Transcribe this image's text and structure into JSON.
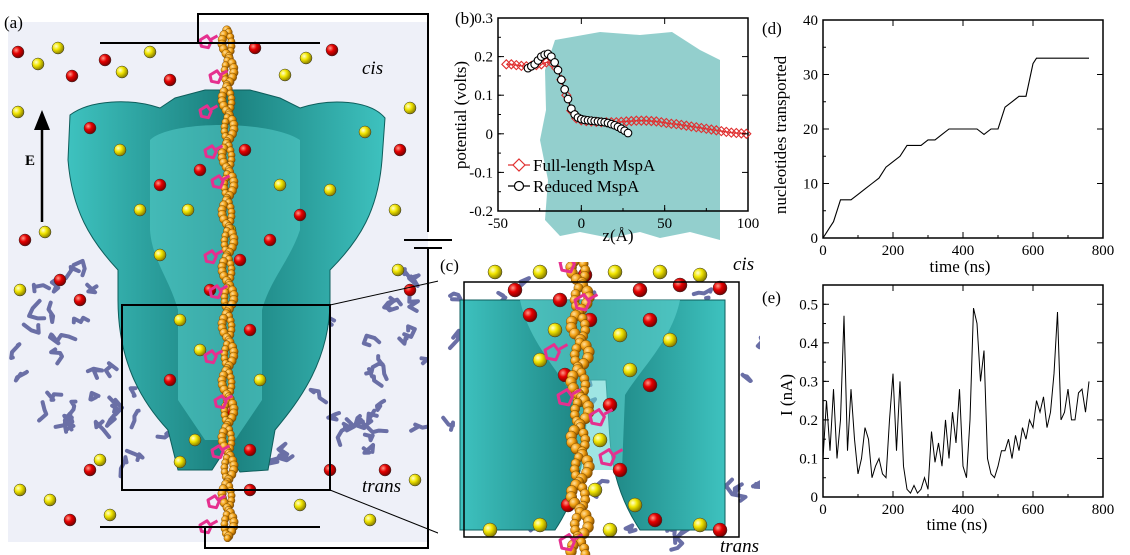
{
  "panels": {
    "a": {
      "label": "(a)",
      "cis": "cis",
      "trans": "trans",
      "field": "E"
    },
    "c": {
      "label": "(c)",
      "cis": "cis",
      "trans": "trans"
    }
  },
  "colors": {
    "water": "#eef0f8",
    "protein": "#1f8c8a",
    "protein_light": "#5fd3d0",
    "lipid": "#6a6fa6",
    "dna": "#f2a012",
    "base": "#e5308f",
    "cation": "#e60000",
    "anion": "#f2e600"
  },
  "chart_data": [
    {
      "panel": "(b)",
      "type": "line",
      "xlabel": "z(Å)",
      "ylabel": "potential (volts)",
      "xlim": [
        -50,
        100
      ],
      "ylim": [
        -0.2,
        0.3
      ],
      "xticks": [
        "-50",
        "0",
        "50",
        "100"
      ],
      "yticks": [
        "-0.2",
        "-0.1",
        "0",
        "0.1",
        "0.2",
        "0.3"
      ],
      "legend_position": "lower-left",
      "series": [
        {
          "name": "Full-length MspA",
          "marker": "diamond",
          "color": "#e03030",
          "x": [
            -45,
            -42,
            -39,
            -36,
            -33,
            -30,
            -27,
            -24,
            -21,
            -18,
            -15,
            -12,
            -9,
            -6,
            -3,
            0,
            3,
            6,
            9,
            12,
            15,
            18,
            21,
            24,
            27,
            30,
            33,
            36,
            39,
            42,
            45,
            48,
            51,
            54,
            57,
            60,
            63,
            66,
            69,
            72,
            75,
            78,
            81,
            84,
            87,
            90,
            93,
            96,
            99
          ],
          "y": [
            0.18,
            0.18,
            0.178,
            0.176,
            0.175,
            0.176,
            0.178,
            0.18,
            0.185,
            0.185,
            0.17,
            0.14,
            0.1,
            0.06,
            0.04,
            0.035,
            0.033,
            0.032,
            0.031,
            0.03,
            0.03,
            0.03,
            0.03,
            0.031,
            0.032,
            0.033,
            0.034,
            0.034,
            0.034,
            0.033,
            0.032,
            0.03,
            0.028,
            0.026,
            0.025,
            0.023,
            0.021,
            0.019,
            0.017,
            0.015,
            0.013,
            0.011,
            0.009,
            0.007,
            0.005,
            0.003,
            0.002,
            0.001,
            0.0
          ]
        },
        {
          "name": "Reduced MspA",
          "marker": "circle",
          "color": "#000000",
          "x": [
            -32,
            -30,
            -28,
            -26,
            -24,
            -22,
            -20,
            -18,
            -16,
            -14,
            -12,
            -10,
            -8,
            -6,
            -4,
            -2,
            0,
            2,
            4,
            6,
            8,
            10,
            12,
            14,
            16,
            18,
            20,
            22,
            24,
            26,
            28
          ],
          "y": [
            0.17,
            0.175,
            0.18,
            0.19,
            0.2,
            0.205,
            0.207,
            0.2,
            0.185,
            0.165,
            0.14,
            0.115,
            0.09,
            0.065,
            0.05,
            0.042,
            0.038,
            0.036,
            0.035,
            0.034,
            0.033,
            0.032,
            0.031,
            0.03,
            0.028,
            0.025,
            0.022,
            0.018,
            0.013,
            0.008,
            0.002
          ]
        }
      ]
    },
    {
      "panel": "(d)",
      "type": "line",
      "xlabel": "time (ns)",
      "ylabel": "nucleotides transported",
      "xlim": [
        0,
        800
      ],
      "ylim": [
        0,
        40
      ],
      "xticks": [
        "0",
        "200",
        "400",
        "600",
        "800"
      ],
      "yticks": [
        "0",
        "10",
        "20",
        "30",
        "40"
      ],
      "series": [
        {
          "x": [
            0,
            10,
            20,
            30,
            40,
            50,
            60,
            80,
            100,
            120,
            140,
            160,
            180,
            200,
            220,
            240,
            260,
            280,
            300,
            320,
            340,
            360,
            380,
            400,
            420,
            440,
            460,
            480,
            500,
            520,
            540,
            560,
            580,
            600,
            610,
            620,
            640,
            660,
            680,
            700,
            720,
            740,
            760
          ],
          "y": [
            0,
            1,
            2,
            3,
            5,
            7,
            7,
            7,
            8,
            9,
            10,
            11,
            13,
            14,
            15,
            17,
            17,
            17,
            18,
            18,
            19,
            20,
            20,
            20,
            20,
            20,
            19,
            20,
            20,
            24,
            25,
            26,
            26,
            32,
            33,
            33,
            33,
            33,
            33,
            33,
            33,
            33,
            33
          ]
        }
      ]
    },
    {
      "panel": "(e)",
      "type": "line",
      "xlabel": "time (ns)",
      "ylabel": "I (nA)",
      "xlim": [
        0,
        800
      ],
      "ylim": [
        0,
        0.55
      ],
      "xticks": [
        "0",
        "200",
        "400",
        "600",
        "800"
      ],
      "yticks": [
        "0",
        "0.1",
        "0.2",
        "0.3",
        "0.4",
        "0.5"
      ],
      "series": [
        {
          "x": [
            0,
            10,
            20,
            30,
            40,
            50,
            60,
            70,
            80,
            90,
            100,
            110,
            120,
            130,
            140,
            150,
            160,
            170,
            180,
            190,
            200,
            210,
            220,
            230,
            240,
            250,
            260,
            270,
            280,
            290,
            300,
            310,
            320,
            330,
            340,
            350,
            360,
            370,
            380,
            390,
            400,
            410,
            420,
            430,
            440,
            450,
            460,
            470,
            480,
            490,
            500,
            510,
            520,
            530,
            540,
            550,
            560,
            570,
            580,
            590,
            600,
            610,
            620,
            630,
            640,
            650,
            660,
            670,
            680,
            690,
            700,
            710,
            720,
            730,
            740,
            750,
            760
          ],
          "y": [
            0.1,
            0.25,
            0.12,
            0.28,
            0.1,
            0.2,
            0.47,
            0.12,
            0.28,
            0.15,
            0.06,
            0.1,
            0.18,
            0.15,
            0.05,
            0.08,
            0.1,
            0.06,
            0.05,
            0.2,
            0.32,
            0.12,
            0.3,
            0.08,
            0.02,
            0.01,
            0.03,
            0.01,
            0.02,
            0.05,
            0.02,
            0.17,
            0.09,
            0.14,
            0.08,
            0.2,
            0.1,
            0.22,
            0.14,
            0.28,
            0.08,
            0.05,
            0.2,
            0.49,
            0.45,
            0.3,
            0.38,
            0.1,
            0.06,
            0.05,
            0.08,
            0.12,
            0.12,
            0.15,
            0.1,
            0.16,
            0.12,
            0.18,
            0.15,
            0.2,
            0.18,
            0.25,
            0.22,
            0.26,
            0.18,
            0.22,
            0.32,
            0.48,
            0.2,
            0.22,
            0.28,
            0.2,
            0.2,
            0.27,
            0.28,
            0.22,
            0.3
          ]
        }
      ]
    }
  ]
}
